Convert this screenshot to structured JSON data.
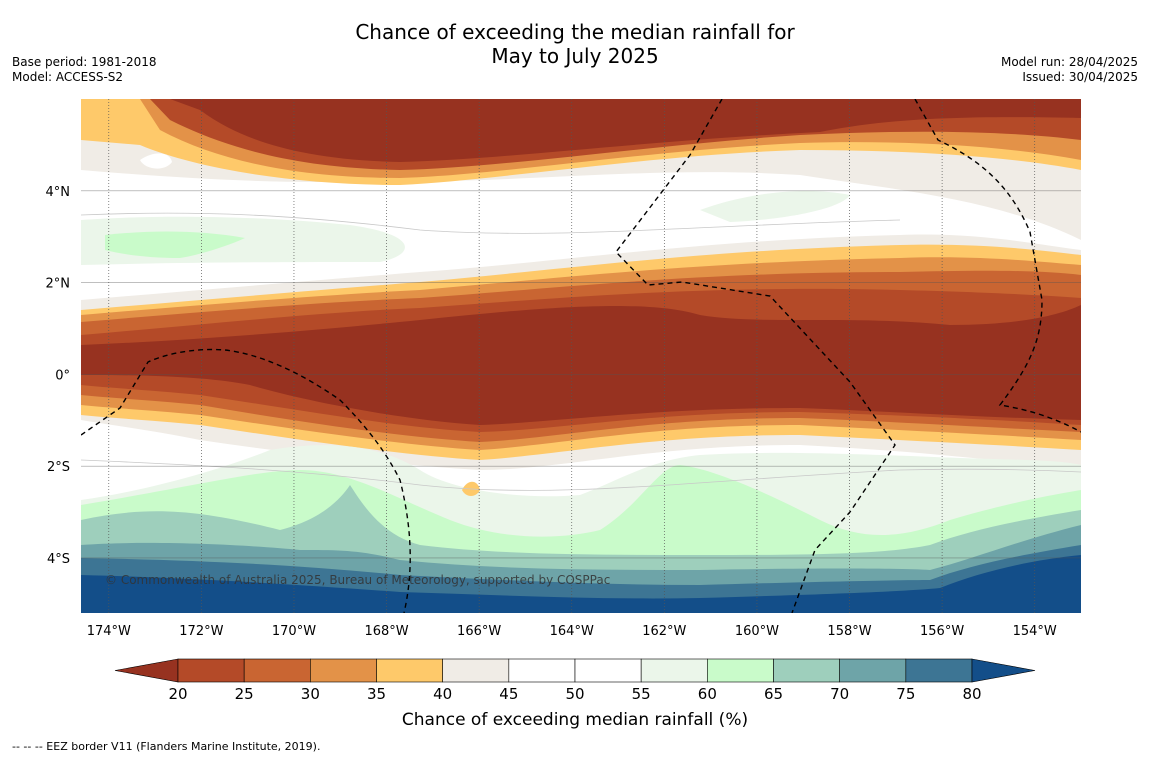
{
  "title_line1": "Chance of exceeding the median rainfall for",
  "title_line2": "May to July 2025",
  "meta_left": {
    "base_period": "Base period: 1981-2018",
    "model": "Model: ACCESS-S2"
  },
  "meta_right": {
    "model_run": "Model run: 28/04/2025",
    "issued": "Issued: 30/04/2025"
  },
  "map": {
    "lon_labels": [
      "174°W",
      "172°W",
      "170°W",
      "168°W",
      "166°W",
      "164°W",
      "162°W",
      "160°W",
      "158°W",
      "156°W",
      "154°W"
    ],
    "lat_labels": [
      "4°N",
      "2°N",
      "0°",
      "2°S",
      "4°S"
    ],
    "lon_range": [
      -174.6,
      -153
    ],
    "lat_range": [
      -5.2,
      6
    ],
    "copyright": "© Commonwealth of Australia 2025, Bureau of Meteorology, supported by COSPPac"
  },
  "colorbar": {
    "ticks": [
      "20",
      "25",
      "30",
      "35",
      "40",
      "45",
      "50",
      "55",
      "60",
      "65",
      "70",
      "75",
      "80"
    ],
    "colors": [
      "#973220",
      "#b44a28",
      "#c96532",
      "#e39248",
      "#fec96a",
      "#f0ece6",
      "#ffffff",
      "#ffffff",
      "#ebf6ea",
      "#c9fbca",
      "#9ecfbc",
      "#6ea4a8",
      "#3d7594",
      "#134e89"
    ],
    "label": "Chance of exceeding median rainfall (%)"
  },
  "footer": "-- -- -- EEZ border V11 (Flanders Marine Institute, 2019)."
}
